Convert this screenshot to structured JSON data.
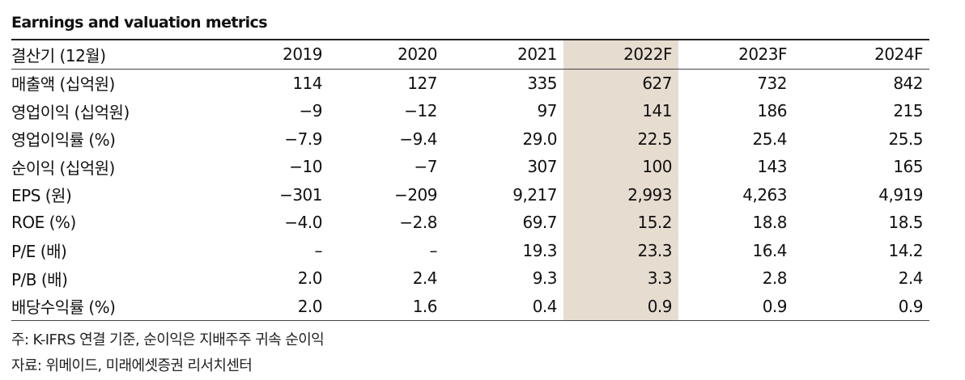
{
  "title": "Earnings and valuation metrics",
  "table": {
    "header": [
      "결산기 (12월)",
      "2019",
      "2020",
      "2021",
      "2022F",
      "2023F",
      "2024F"
    ],
    "rows": [
      [
        "매출액 (십억원)",
        "114",
        "127",
        "335",
        "627",
        "732",
        "842"
      ],
      [
        "영업이익 (십억원)",
        "−9",
        "−12",
        "97",
        "141",
        "186",
        "215"
      ],
      [
        "영업이익률 (%)",
        "−7.9",
        "−9.4",
        "29.0",
        "22.5",
        "25.4",
        "25.5"
      ],
      [
        "순이익 (십억원)",
        "−10",
        "−7",
        "307",
        "100",
        "143",
        "165"
      ],
      [
        "EPS (원)",
        "−301",
        "−209",
        "9,217",
        "2,993",
        "4,263",
        "4,919"
      ],
      [
        "ROE (%)",
        "−4.0",
        "−2.8",
        "69.7",
        "15.2",
        "18.8",
        "18.5"
      ],
      [
        "P/E (배)",
        "–",
        "–",
        "19.3",
        "23.3",
        "16.4",
        "14.2"
      ],
      [
        "P/B (배)",
        "2.0",
        "2.4",
        "9.3",
        "3.3",
        "2.8",
        "2.4"
      ],
      [
        "배당수익률 (%)",
        "2.0",
        "1.6",
        "0.4",
        "0.9",
        "0.9",
        "0.9"
      ]
    ],
    "highlight_column": "2022F",
    "highlight_color": "#e6dcd0"
  },
  "notes": {
    "note": "주: K-IFRS 연결 기준, 순이익은 지배주주 귀속 순이익",
    "source": "자료: 위메이드, 미래에셋증권 리서치센터"
  }
}
